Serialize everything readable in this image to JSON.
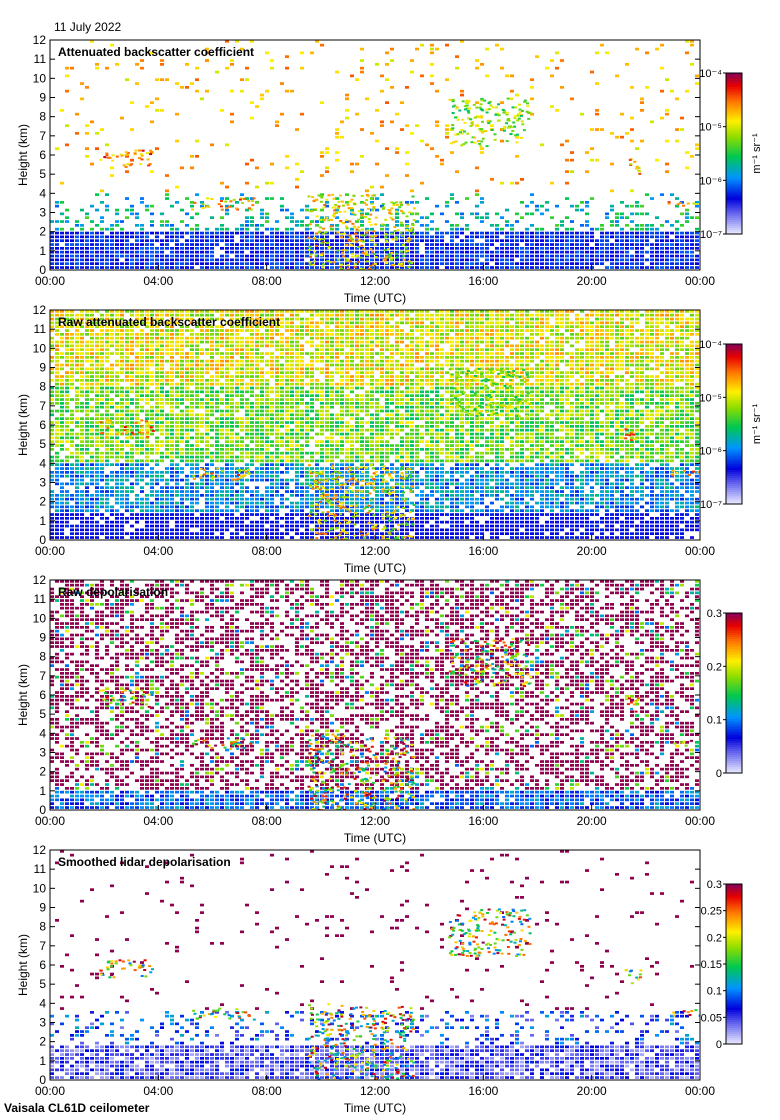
{
  "header": {
    "date": "11 July 2022"
  },
  "footer": {
    "instrument": "Vaisala CL61D ceilometer"
  },
  "chart_data": [
    {
      "type": "heatmap",
      "title": "Attenuated backscatter coefficient",
      "xlabel": "Time (UTC)",
      "ylabel": "Height (km)",
      "x_ticks": [
        "00:00",
        "04:00",
        "08:00",
        "12:00",
        "16:00",
        "20:00",
        "00:00"
      ],
      "y_ticks": [
        "0",
        "1",
        "2",
        "3",
        "4",
        "5",
        "6",
        "7",
        "8",
        "9",
        "10",
        "11",
        "12"
      ],
      "ylim": [
        0,
        12
      ],
      "colorbar": {
        "scale": "log",
        "units": "m⁻¹ sr⁻¹",
        "ticks": [
          "10⁻⁴",
          "10⁻⁵",
          "10⁻⁶",
          "10⁻⁷"
        ],
        "range": [
          1e-07,
          0.0001
        ]
      },
      "features": [
        {
          "start_hour": 1.8,
          "end_hour": 3.8,
          "base_km": 5.4,
          "top_km": 6.3,
          "level": 0.95
        },
        {
          "start_hour": 5.2,
          "end_hour": 7.5,
          "base_km": 3.2,
          "top_km": 3.8,
          "level": 0.9
        },
        {
          "start_hour": 9.5,
          "end_hour": 12.0,
          "base_km": 0,
          "top_km": 4.0,
          "level": 0.85
        },
        {
          "start_hour": 12.2,
          "end_hour": 13.4,
          "base_km": 0,
          "top_km": 3.9,
          "level": 0.8
        },
        {
          "start_hour": 14.7,
          "end_hour": 17.7,
          "base_km": 6.5,
          "top_km": 9.0,
          "level": 0.75
        },
        {
          "start_hour": 21.2,
          "end_hour": 21.8,
          "base_km": 5.0,
          "top_km": 5.9,
          "level": 0.9
        },
        {
          "start_hour": 22.8,
          "end_hour": 24.0,
          "base_km": 3.4,
          "top_km": 3.7,
          "level": 0.9
        }
      ]
    },
    {
      "type": "heatmap",
      "title": "Raw attenuated backscatter coefficient",
      "xlabel": "Time (UTC)",
      "ylabel": "Height (km)",
      "x_ticks": [
        "00:00",
        "04:00",
        "08:00",
        "12:00",
        "16:00",
        "20:00",
        "00:00"
      ],
      "y_ticks": [
        "0",
        "1",
        "2",
        "3",
        "4",
        "5",
        "6",
        "7",
        "8",
        "9",
        "10",
        "11",
        "12"
      ],
      "ylim": [
        0,
        12
      ],
      "colorbar": {
        "scale": "log",
        "units": "m⁻¹ sr⁻¹",
        "ticks": [
          "10⁻⁴",
          "10⁻⁵",
          "10⁻⁶",
          "10⁻⁷"
        ],
        "range": [
          1e-07,
          0.0001
        ]
      }
    },
    {
      "type": "heatmap",
      "title": "Raw depolarisation",
      "xlabel": "Time (UTC)",
      "ylabel": "Height (km)",
      "x_ticks": [
        "00:00",
        "04:00",
        "08:00",
        "12:00",
        "16:00",
        "20:00",
        "00:00"
      ],
      "y_ticks": [
        "0",
        "1",
        "2",
        "3",
        "4",
        "5",
        "6",
        "7",
        "8",
        "9",
        "10",
        "11",
        "12"
      ],
      "ylim": [
        0,
        12
      ],
      "colorbar": {
        "scale": "linear",
        "units": "",
        "ticks": [
          "0.3",
          "0.2",
          "0.1",
          "0"
        ],
        "range": [
          0,
          0.3
        ]
      }
    },
    {
      "type": "heatmap",
      "title": "Smoothed lidar depolarisation",
      "xlabel": "Time (UTC)",
      "ylabel": "Height (km)",
      "x_ticks": [
        "00:00",
        "04:00",
        "08:00",
        "12:00",
        "16:00",
        "20:00",
        "00:00"
      ],
      "y_ticks": [
        "0",
        "1",
        "2",
        "3",
        "4",
        "5",
        "6",
        "7",
        "8",
        "9",
        "10",
        "11",
        "12"
      ],
      "ylim": [
        0,
        12
      ],
      "colorbar": {
        "scale": "linear",
        "units": "",
        "ticks": [
          "0.3",
          "0.25",
          "0.2",
          "0.15",
          "0.1",
          "0.05",
          "0"
        ],
        "range": [
          0,
          0.3
        ]
      }
    }
  ]
}
